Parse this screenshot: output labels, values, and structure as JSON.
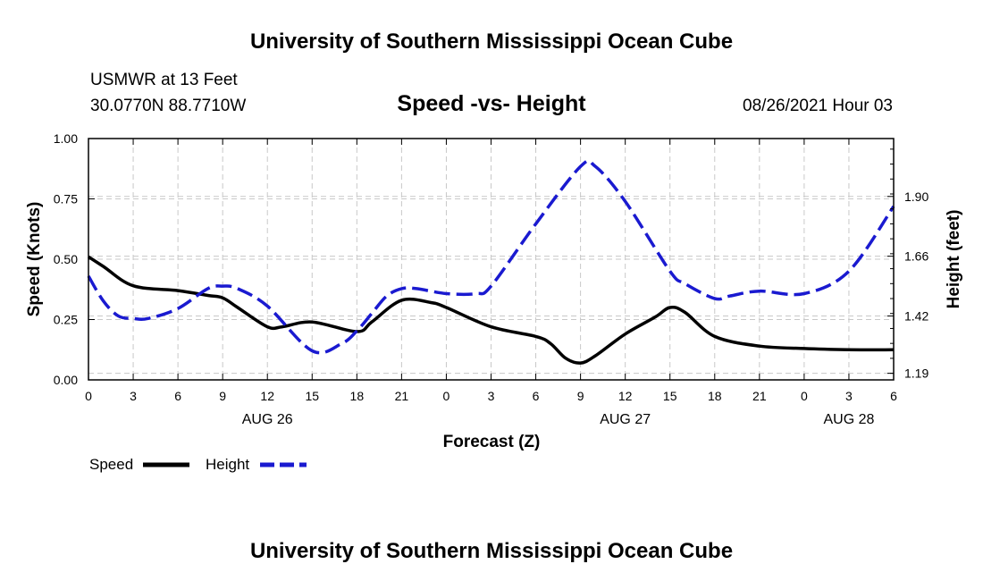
{
  "header": {
    "title_top": "University of Southern Mississippi Ocean Cube",
    "station": "USMWR at 13 Feet",
    "coords": "30.0770N  88.7710W",
    "plot_title": "Speed -vs- Height",
    "datetime": "08/26/2021 Hour 03"
  },
  "footer": {
    "title_bottom": "University of Southern Mississippi Ocean Cube"
  },
  "colors": {
    "speed": "#000000",
    "height": "#1a1ad0",
    "grid": "#c8c8c8"
  },
  "chart_data": {
    "type": "line",
    "xlabel": "Forecast (Z)",
    "ylabel_left": "Speed (Knots)",
    "ylabel_right": "Height (feet)",
    "x_hours_range": [
      0,
      54
    ],
    "x_ticks": [
      {
        "h": 0,
        "label": "0"
      },
      {
        "h": 3,
        "label": "3"
      },
      {
        "h": 6,
        "label": "6"
      },
      {
        "h": 9,
        "label": "9"
      },
      {
        "h": 12,
        "label": "12"
      },
      {
        "h": 15,
        "label": "15"
      },
      {
        "h": 18,
        "label": "18"
      },
      {
        "h": 21,
        "label": "21"
      },
      {
        "h": 24,
        "label": "0"
      },
      {
        "h": 27,
        "label": "3"
      },
      {
        "h": 30,
        "label": "6"
      },
      {
        "h": 33,
        "label": "9"
      },
      {
        "h": 36,
        "label": "12"
      },
      {
        "h": 39,
        "label": "15"
      },
      {
        "h": 42,
        "label": "18"
      },
      {
        "h": 45,
        "label": "21"
      },
      {
        "h": 48,
        "label": "0"
      },
      {
        "h": 51,
        "label": "3"
      },
      {
        "h": 54,
        "label": "6"
      }
    ],
    "date_labels": [
      {
        "h": 12,
        "label": "AUG 26"
      },
      {
        "h": 36,
        "label": "AUG 27"
      },
      {
        "h": 51,
        "label": "AUG 28"
      }
    ],
    "y_left_range": [
      0,
      1.0
    ],
    "y_left_ticks": [
      "0.00",
      "0.25",
      "0.50",
      "0.75",
      "1.00"
    ],
    "y_right_range": [
      1.1635,
      2.1325
    ],
    "y_right_ticks": [
      {
        "v": 1.19,
        "label": "1.19"
      },
      {
        "v": 1.42,
        "label": "1.42"
      },
      {
        "v": 1.66,
        "label": "1.66"
      },
      {
        "v": 1.9,
        "label": "1.90"
      }
    ],
    "grid": true,
    "series": [
      {
        "name": "Speed",
        "axis": "left",
        "style": "solid",
        "hours": [
          0,
          1,
          3,
          6,
          8,
          9,
          10,
          12,
          13,
          15,
          18,
          19,
          21,
          23,
          24,
          27,
          30,
          31,
          32,
          33,
          34,
          36,
          38,
          39,
          40,
          42,
          45,
          48,
          51,
          54
        ],
        "values": [
          0.51,
          0.47,
          0.39,
          0.37,
          0.35,
          0.34,
          0.3,
          0.22,
          0.22,
          0.24,
          0.2,
          0.24,
          0.33,
          0.32,
          0.3,
          0.22,
          0.18,
          0.15,
          0.09,
          0.07,
          0.1,
          0.19,
          0.26,
          0.3,
          0.28,
          0.18,
          0.14,
          0.13,
          0.125,
          0.125
        ]
      },
      {
        "name": "Height",
        "axis": "right",
        "style": "dashed",
        "hours": [
          0,
          1,
          2,
          3,
          4,
          6,
          8,
          9,
          10,
          12,
          15,
          17,
          18,
          19,
          20,
          21,
          22,
          24,
          26,
          27,
          30,
          33,
          34,
          36,
          39,
          40,
          42,
          43,
          45,
          48,
          51,
          54
        ],
        "values": [
          1.58,
          1.48,
          1.42,
          1.41,
          1.41,
          1.45,
          1.53,
          1.54,
          1.53,
          1.46,
          1.28,
          1.31,
          1.36,
          1.43,
          1.5,
          1.53,
          1.53,
          1.51,
          1.51,
          1.54,
          1.79,
          2.02,
          2.02,
          1.88,
          1.6,
          1.55,
          1.49,
          1.5,
          1.52,
          1.51,
          1.6,
          1.86
        ]
      }
    ]
  },
  "legend": {
    "speed_label": "Speed",
    "height_label": "Height"
  }
}
